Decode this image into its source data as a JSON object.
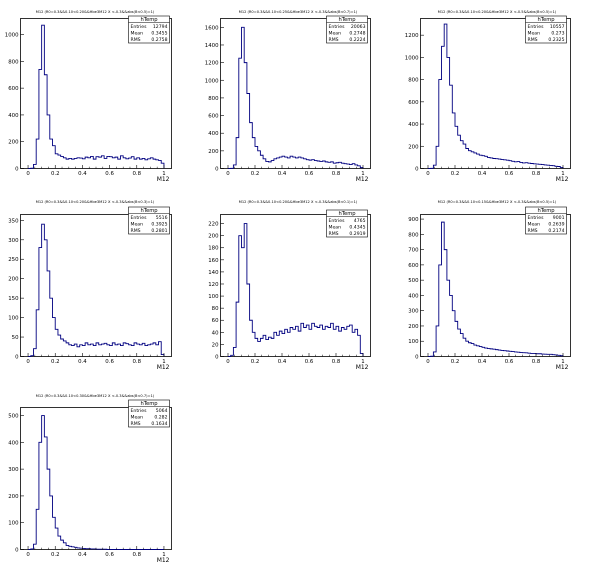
{
  "charts": [
    {
      "title": "M12 (R0=0.3&&0.10<0.20&&Hbe3M12 X <-0.3&&abs(B<0.5)=1)",
      "xlabel": "M12",
      "stats": {
        "header": "hTemp",
        "entries_label": "Entries",
        "entries": "12794",
        "mean_label": "Mean",
        "mean": "0.3455",
        "rms_label": "RMS",
        "rms": "0.2758"
      },
      "yticks": [
        "0",
        "200",
        "400",
        "600",
        "800",
        "1000"
      ],
      "xticks": [
        "0",
        "0.2",
        "0.4",
        "0.6",
        "0.8",
        "1"
      ]
    },
    {
      "title": "M12 (R0=0.3&&0.10<0.25&&Hbe3M12 X <-0.3&&abs(B<0.7)=1)",
      "xlabel": "M12",
      "stats": {
        "header": "hTemp",
        "entries_label": "Entries",
        "entries": "20063",
        "mean_label": "Mean",
        "mean": "0.2748",
        "rms_label": "RMS",
        "rms": "0.2224"
      },
      "yticks": [
        "0",
        "200",
        "400",
        "600",
        "800",
        "1000",
        "1200",
        "1400",
        "1600"
      ],
      "xticks": [
        "0",
        "0.2",
        "0.4",
        "0.6",
        "0.8",
        "1"
      ]
    },
    {
      "title": "M12 (R0=0.3&&0.10<0.20&&Hbe3M12 X <-0.5&&abs(B<0.5)=1)",
      "xlabel": "M12",
      "stats": {
        "header": "hTemp",
        "entries_label": "Entries",
        "entries": "10557",
        "mean_label": "Mean",
        "mean": "0.273",
        "rms_label": "RMS",
        "rms": "0.2325"
      },
      "yticks": [
        "0",
        "200",
        "400",
        "600",
        "800",
        "1000",
        "1200"
      ],
      "xticks": [
        "0",
        "0.2",
        "0.4",
        "0.6",
        "0.8",
        "1"
      ]
    },
    {
      "title": "M12 (R0=0.3&&0.10<0.20&&Hbe3M12 X <-0.3&&abs(B<0.3)=1)",
      "xlabel": "M12",
      "stats": {
        "header": "hTemp",
        "entries_label": "Entries",
        "entries": "5516",
        "mean_label": "Mean",
        "mean": "0.3925",
        "rms_label": "RMS",
        "rms": "0.2801"
      },
      "yticks": [
        "0",
        "50",
        "100",
        "150",
        "200",
        "250",
        "300",
        "350"
      ],
      "xticks": [
        "0",
        "0.2",
        "0.4",
        "0.6",
        "0.8",
        "1"
      ]
    },
    {
      "title": "M12 (R0=0.3&&0.10<0.20&&Hbe3M12 X <-0.3&&abs(B<0.1)=1)",
      "xlabel": "M12",
      "stats": {
        "header": "hTemp",
        "entries_label": "Entries",
        "entries": "4765",
        "mean_label": "Mean",
        "mean": "0.4345",
        "rms_label": "RMS",
        "rms": "0.2919"
      },
      "yticks": [
        "0",
        "20",
        "40",
        "60",
        "80",
        "100",
        "120",
        "140",
        "160",
        "180",
        "200",
        "220"
      ],
      "xticks": [
        "0",
        "0.2",
        "0.4",
        "0.6",
        "0.8",
        "1"
      ]
    },
    {
      "title": "M12 (R0=0.3&&0.10<0.15&&Hbe3M12 X <-0.3&&abs(B<0.5)=1)",
      "xlabel": "M12",
      "stats": {
        "header": "hTemp",
        "entries_label": "Entries",
        "entries": "9001",
        "mean_label": "Mean",
        "mean": "0.2639",
        "rms_label": "RMS",
        "rms": "0.2174"
      },
      "yticks": [
        "0",
        "100",
        "200",
        "300",
        "400",
        "500",
        "600",
        "700",
        "800",
        "900"
      ],
      "xticks": [
        "0",
        "0.2",
        "0.4",
        "0.6",
        "0.8",
        "1"
      ]
    },
    {
      "title": "M12 (R0=0.3&&0.10<0.30&&Hbe3M12 X <-0.3&&abs(B<0.7)=1)",
      "xlabel": "M12",
      "stats": {
        "header": "hTemp",
        "entries_label": "Entries",
        "entries": "5064",
        "mean_label": "Mean",
        "mean": "0.282",
        "rms_label": "RMS",
        "rms": "0.1634"
      },
      "yticks": [
        "0",
        "100",
        "200",
        "300",
        "400",
        "500"
      ],
      "xticks": [
        "0",
        "0.2",
        "0.4",
        "0.6",
        "0.8",
        "1"
      ]
    }
  ],
  "chart_data": [
    {
      "type": "bar",
      "subtype": "histogram-step",
      "bins": 50,
      "xlim": [
        0,
        1
      ],
      "ylim": [
        0,
        1120
      ],
      "values": [
        0,
        2,
        30,
        220,
        740,
        1070,
        700,
        400,
        220,
        170,
        110,
        100,
        90,
        80,
        70,
        75,
        70,
        75,
        80,
        78,
        72,
        85,
        80,
        90,
        70,
        88,
        85,
        95,
        75,
        90,
        88,
        80,
        85,
        70,
        95,
        80,
        72,
        78,
        88,
        70,
        80,
        70,
        75,
        65,
        72,
        80,
        70,
        65,
        60,
        40
      ],
      "xlabel": "M12",
      "ylabel": "",
      "color": "#000080"
    },
    {
      "type": "bar",
      "subtype": "histogram-step",
      "bins": 50,
      "xlim": [
        0,
        1
      ],
      "ylim": [
        0,
        1700
      ],
      "values": [
        0,
        2,
        40,
        350,
        1250,
        1600,
        1200,
        850,
        520,
        350,
        250,
        200,
        150,
        110,
        80,
        75,
        90,
        110,
        120,
        130,
        140,
        130,
        120,
        140,
        130,
        120,
        130,
        120,
        110,
        100,
        95,
        100,
        90,
        85,
        80,
        85,
        75,
        70,
        75,
        60,
        65,
        70,
        60,
        55,
        50,
        45,
        55,
        40,
        30,
        10
      ],
      "xlabel": "M12",
      "ylabel": "",
      "color": "#000080"
    },
    {
      "type": "bar",
      "subtype": "histogram-step",
      "bins": 50,
      "xlim": [
        0,
        1
      ],
      "ylim": [
        0,
        1350
      ],
      "values": [
        0,
        2,
        30,
        200,
        800,
        1100,
        1300,
        1000,
        750,
        500,
        380,
        300,
        250,
        220,
        180,
        160,
        150,
        140,
        130,
        120,
        115,
        110,
        100,
        95,
        90,
        88,
        85,
        80,
        78,
        75,
        70,
        65,
        60,
        62,
        55,
        50,
        52,
        48,
        45,
        42,
        40,
        38,
        35,
        32,
        30,
        28,
        25,
        20,
        18,
        10
      ],
      "xlabel": "M12",
      "ylabel": "",
      "color": "#000080"
    },
    {
      "type": "bar",
      "subtype": "histogram-step",
      "bins": 50,
      "xlim": [
        0,
        1
      ],
      "ylim": [
        0,
        365
      ],
      "values": [
        0,
        2,
        20,
        120,
        280,
        340,
        300,
        220,
        150,
        100,
        70,
        55,
        45,
        40,
        35,
        30,
        28,
        32,
        25,
        30,
        28,
        35,
        30,
        32,
        28,
        35,
        30,
        32,
        34,
        30,
        28,
        35,
        30,
        32,
        28,
        35,
        33,
        30,
        28,
        35,
        32,
        30,
        34,
        28,
        30,
        32,
        35,
        30,
        38,
        5
      ],
      "xlabel": "M12",
      "ylabel": "",
      "color": "#000080"
    },
    {
      "type": "bar",
      "subtype": "histogram-step",
      "bins": 50,
      "xlim": [
        0,
        1
      ],
      "ylim": [
        0,
        235
      ],
      "values": [
        0,
        2,
        15,
        90,
        200,
        180,
        220,
        120,
        60,
        40,
        30,
        25,
        30,
        35,
        28,
        32,
        30,
        40,
        35,
        42,
        38,
        45,
        40,
        48,
        45,
        50,
        42,
        55,
        48,
        52,
        45,
        55,
        50,
        48,
        52,
        45,
        50,
        48,
        55,
        45,
        50,
        42,
        48,
        45,
        50,
        52,
        40,
        45,
        35,
        5
      ],
      "xlabel": "M12",
      "ylabel": "",
      "color": "#000080"
    },
    {
      "type": "bar",
      "subtype": "histogram-step",
      "bins": 50,
      "xlim": [
        0,
        1
      ],
      "ylim": [
        0,
        930
      ],
      "values": [
        0,
        2,
        30,
        200,
        600,
        880,
        700,
        500,
        400,
        300,
        230,
        180,
        150,
        120,
        100,
        90,
        85,
        75,
        70,
        65,
        60,
        55,
        52,
        50,
        48,
        45,
        42,
        40,
        38,
        36,
        34,
        32,
        30,
        28,
        26,
        25,
        24,
        22,
        20,
        20,
        18,
        18,
        16,
        15,
        14,
        14,
        12,
        10,
        8,
        5
      ],
      "xlabel": "M12",
      "ylabel": "",
      "color": "#000080"
    },
    {
      "type": "bar",
      "subtype": "histogram-step",
      "bins": 50,
      "xlim": [
        0,
        1
      ],
      "ylim": [
        0,
        530
      ],
      "values": [
        0,
        2,
        20,
        150,
        400,
        500,
        420,
        300,
        200,
        120,
        80,
        50,
        35,
        25,
        15,
        12,
        10,
        8,
        6,
        5,
        4,
        3,
        3,
        2,
        2,
        1,
        1,
        1,
        1,
        0,
        0,
        0,
        0,
        0,
        0,
        0,
        0,
        0,
        0,
        0,
        0,
        0,
        0,
        0,
        0,
        0,
        0,
        0,
        0,
        0
      ],
      "xlabel": "M12",
      "ylabel": "",
      "color": "#000080"
    }
  ]
}
